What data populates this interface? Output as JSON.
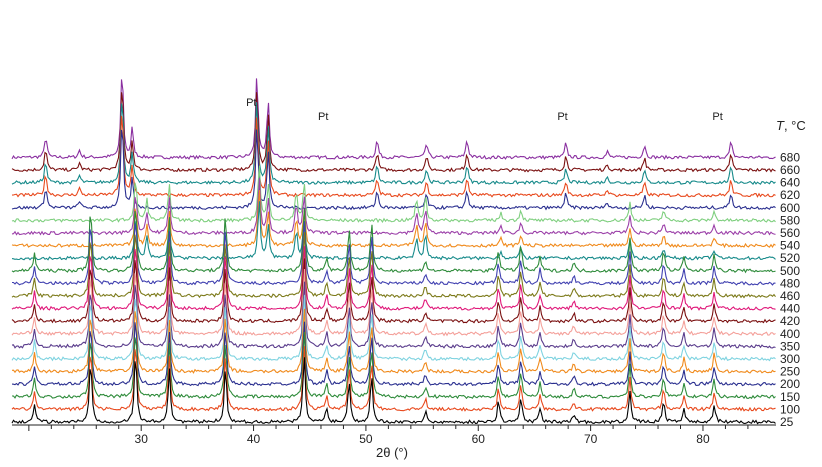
{
  "chart_data": {
    "type": "line",
    "title": "",
    "xlabel": "2θ (°)",
    "ylabel": "",
    "xlim": [
      18.5,
      86.5
    ],
    "x_ticks": [
      30,
      40,
      50,
      60,
      70,
      80
    ],
    "x_tick_labels": [
      "30",
      "40",
      "50",
      "60",
      "70",
      "80"
    ],
    "y_axis_shown": false,
    "grid": false,
    "legend_header": {
      "italic": "T",
      "text": ", °C"
    },
    "annotations": [
      {
        "text": "Pt",
        "x": 39.8
      },
      {
        "text": "Pt",
        "x": 46.2
      },
      {
        "text": "Pt",
        "x": 67.5
      },
      {
        "text": "Pt",
        "x": 81.3
      }
    ],
    "series": [
      {
        "name": "25",
        "color": "#000000",
        "phase": "A"
      },
      {
        "name": "100",
        "color": "#e8491d",
        "phase": "A"
      },
      {
        "name": "150",
        "color": "#2e8b3a",
        "phase": "A"
      },
      {
        "name": "200",
        "color": "#2a2f8f",
        "phase": "A"
      },
      {
        "name": "250",
        "color": "#f08a1c",
        "phase": "A"
      },
      {
        "name": "300",
        "color": "#7fd3e0",
        "phase": "A"
      },
      {
        "name": "350",
        "color": "#5a3c8c",
        "phase": "A"
      },
      {
        "name": "400",
        "color": "#f4a09a",
        "phase": "A"
      },
      {
        "name": "420",
        "color": "#7a1010",
        "phase": "A"
      },
      {
        "name": "440",
        "color": "#e0197a",
        "phase": "A"
      },
      {
        "name": "460",
        "color": "#7c7a1a",
        "phase": "A"
      },
      {
        "name": "480",
        "color": "#4040b0",
        "phase": "A"
      },
      {
        "name": "500",
        "color": "#2e8b3a",
        "phase": "A"
      },
      {
        "name": "520",
        "color": "#168a8a",
        "phase": "B"
      },
      {
        "name": "540",
        "color": "#f08a1c",
        "phase": "B"
      },
      {
        "name": "560",
        "color": "#9b3fa8",
        "phase": "B"
      },
      {
        "name": "580",
        "color": "#7fcf7f",
        "phase": "B"
      },
      {
        "name": "600",
        "color": "#2a2f8f",
        "phase": "C"
      },
      {
        "name": "620",
        "color": "#e8491d",
        "phase": "C"
      },
      {
        "name": "640",
        "color": "#168a8a",
        "phase": "C"
      },
      {
        "name": "660",
        "color": "#7a1010",
        "phase": "C"
      },
      {
        "name": "680",
        "color": "#8a2fa0",
        "phase": "C"
      }
    ],
    "peaks": {
      "A": [
        [
          20.5,
          25
        ],
        [
          25.5,
          90
        ],
        [
          29.5,
          100
        ],
        [
          32.5,
          75
        ],
        [
          37.5,
          80
        ],
        [
          44.5,
          95
        ],
        [
          46.5,
          20
        ],
        [
          48.5,
          60
        ],
        [
          50.5,
          70
        ],
        [
          55.3,
          15
        ],
        [
          61.8,
          30
        ],
        [
          63.8,
          35
        ],
        [
          65.5,
          20
        ],
        [
          68.5,
          12
        ],
        [
          73.5,
          45
        ],
        [
          76.5,
          30
        ],
        [
          78.3,
          20
        ],
        [
          81.0,
          25
        ]
      ],
      "B": [
        [
          29.5,
          60
        ],
        [
          30.5,
          30
        ],
        [
          32.5,
          50
        ],
        [
          40.5,
          80
        ],
        [
          41.3,
          50
        ],
        [
          43.8,
          40
        ],
        [
          44.5,
          55
        ],
        [
          54.5,
          30
        ],
        [
          55.3,
          35
        ],
        [
          62.0,
          10
        ],
        [
          63.8,
          15
        ],
        [
          73.5,
          25
        ],
        [
          76.5,
          15
        ],
        [
          81.0,
          12
        ]
      ],
      "C": [
        [
          21.5,
          30
        ],
        [
          24.5,
          10
        ],
        [
          28.3,
          130
        ],
        [
          29.2,
          40
        ],
        [
          40.3,
          120
        ],
        [
          41.3,
          80
        ],
        [
          51.0,
          25
        ],
        [
          55.4,
          20
        ],
        [
          59.0,
          25
        ],
        [
          67.8,
          20
        ],
        [
          71.5,
          8
        ],
        [
          74.8,
          18
        ],
        [
          82.5,
          22
        ]
      ]
    }
  }
}
